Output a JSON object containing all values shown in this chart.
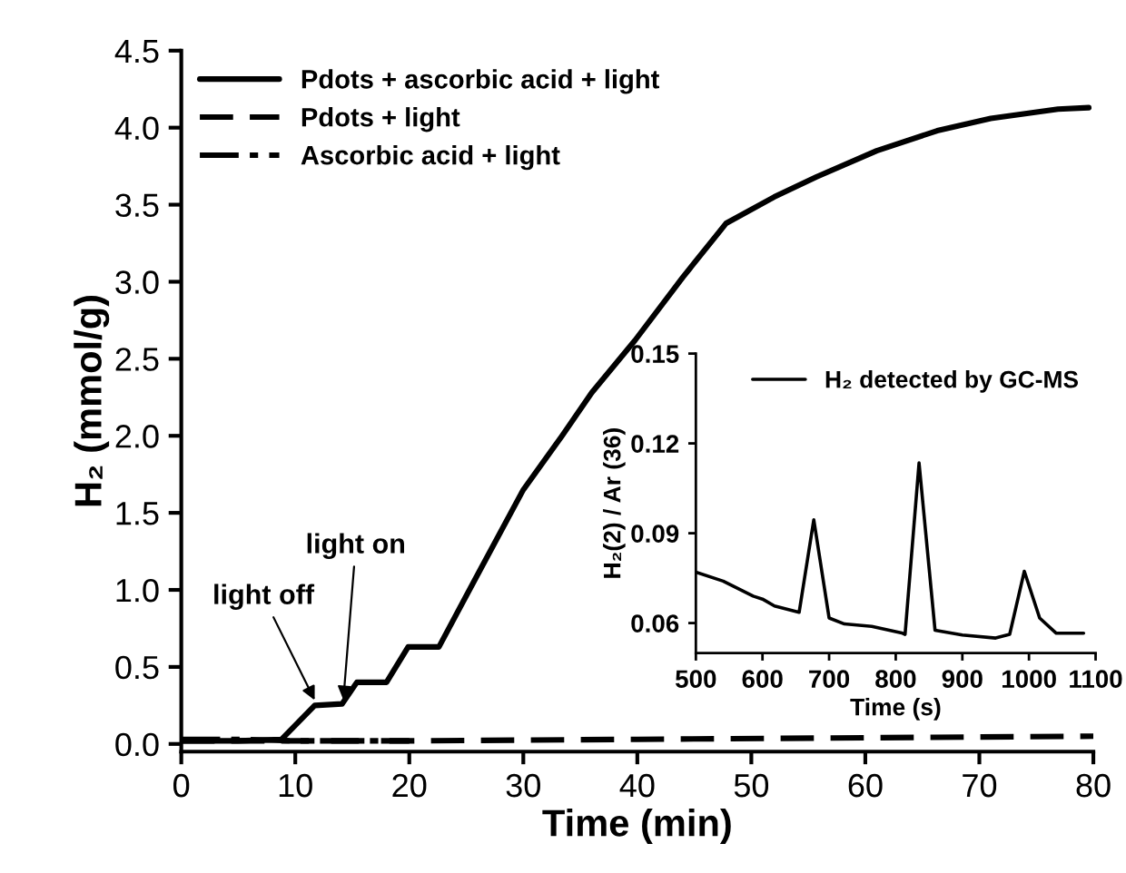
{
  "chart_data": [
    {
      "type": "line",
      "xlabel": "Time (min)",
      "ylabel": "H₂ (mmol/g)",
      "xlim": [
        0,
        80
      ],
      "ylim": [
        -0.05,
        4.5
      ],
      "xticks": [
        0,
        10,
        20,
        30,
        40,
        50,
        60,
        70,
        80
      ],
      "yticks": [
        {
          "value": 0,
          "label": "0.0"
        },
        {
          "value": 0.5,
          "label": "0.5"
        },
        {
          "value": 1,
          "label": "1.0"
        },
        {
          "value": 1.5,
          "label": "1.5"
        },
        {
          "value": 2,
          "label": "2.0"
        },
        {
          "value": 2.5,
          "label": "2.5"
        },
        {
          "value": 3,
          "label": "3.0"
        },
        {
          "value": 3.5,
          "label": "3.5"
        },
        {
          "value": 4,
          "label": "4.0"
        },
        {
          "value": 4.5,
          "label": "4.5"
        }
      ],
      "legend": "top left",
      "grid": false,
      "marker": "none",
      "series": [
        {
          "name": "Pdots + ascorbic acid + light",
          "color": "#000000",
          "line_style": "solid",
          "x": [
            0,
            5,
            8.8,
            11.7,
            14.1,
            15.4,
            18.0,
            19.9,
            22.6,
            26,
            30,
            33.4,
            36,
            39.8,
            44,
            47.8,
            52,
            55.7,
            61,
            66.3,
            71,
            76.9,
            79.6
          ],
          "values": [
            0.02,
            0.02,
            0.03,
            0.25,
            0.26,
            0.4,
            0.4,
            0.63,
            0.63,
            1.1,
            1.65,
            2.0,
            2.28,
            2.62,
            3.03,
            3.38,
            3.55,
            3.68,
            3.85,
            3.98,
            4.06,
            4.12,
            4.13
          ]
        },
        {
          "name": "Pdots + light",
          "color": "#000000",
          "line_style": "dashed",
          "x": [
            0,
            20,
            40,
            60,
            80
          ],
          "values": [
            0.02,
            0.02,
            0.03,
            0.04,
            0.05
          ]
        },
        {
          "name": "Ascorbic acid + light",
          "color": "#000000",
          "line_style": "dashdot",
          "x": [
            0,
            5,
            10,
            15,
            20
          ],
          "values": [
            0.03,
            0.03,
            0.02,
            0.02,
            0.02
          ]
        }
      ],
      "annotations": [
        {
          "text": "light off",
          "x": 11.8,
          "y": 0.27
        },
        {
          "text": "light on",
          "x": 14.2,
          "y": 0.27
        }
      ]
    },
    {
      "type": "line",
      "xlabel": "Time (s)",
      "ylabel": "H₂(2) / Ar (36)",
      "xlim": [
        500,
        1100
      ],
      "ylim": [
        0.05,
        0.15
      ],
      "xticks": [
        500,
        600,
        700,
        800,
        900,
        1000,
        1100
      ],
      "yticks": [
        {
          "value": 0.06,
          "label": "0.06"
        },
        {
          "value": 0.09,
          "label": "0.09"
        },
        {
          "value": 0.12,
          "label": "0.12"
        },
        {
          "value": 0.15,
          "label": "0.15"
        }
      ],
      "legend": "top right",
      "grid": false,
      "marker": "none",
      "series": [
        {
          "name": "H₂ detected by GC-MS",
          "color": "#000000",
          "line_style": "solid",
          "x": [
            500,
            541,
            586,
            600,
            618,
            655,
            677,
            700,
            723,
            764,
            809,
            814,
            835,
            859,
            900,
            950,
            971,
            993,
            1016,
            1041,
            1082
          ],
          "values": [
            0.077,
            0.074,
            0.069,
            0.068,
            0.0657,
            0.0636,
            0.0945,
            0.0617,
            0.0597,
            0.0589,
            0.0567,
            0.0562,
            0.1135,
            0.0576,
            0.056,
            0.055,
            0.0562,
            0.0773,
            0.0617,
            0.0566,
            0.0566
          ]
        }
      ]
    }
  ]
}
